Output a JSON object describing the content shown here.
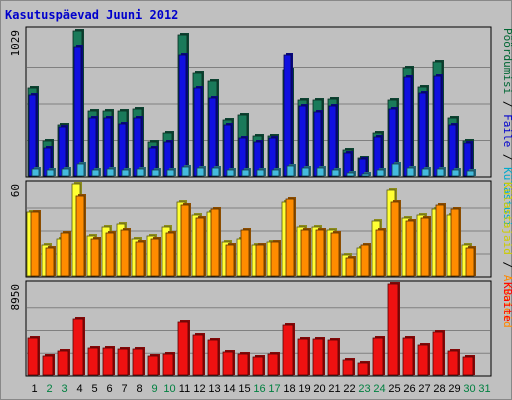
{
  "chart_data": {
    "type": "bar",
    "title": "Kasutuspäevad Juuni 2012",
    "categories": [
      "1",
      "2",
      "3",
      "4",
      "5",
      "6",
      "7",
      "8",
      "9",
      "10",
      "11",
      "12",
      "13",
      "14",
      "15",
      "16",
      "17",
      "18",
      "19",
      "20",
      "21",
      "22",
      "23",
      "24",
      "25",
      "26",
      "27",
      "28",
      "29",
      "30",
      "31"
    ],
    "weekend_days": [
      "2",
      "3",
      "9",
      "10",
      "16",
      "17",
      "23",
      "24",
      "30",
      "31"
    ],
    "panels": [
      {
        "id": "top",
        "ymax_label": "1029",
        "ylim": [
          0,
          1029
        ],
        "legend": [
          {
            "text": "Pöördumisi",
            "color": "#006633"
          },
          {
            "text": " / ",
            "color": "#000000"
          },
          {
            "text": "Faile",
            "color": "#0000cc"
          },
          {
            "text": " / ",
            "color": "#000000"
          },
          {
            "text": "Külastusi",
            "color": "#00aacc"
          }
        ],
        "series": [
          {
            "name": "Pöördumisi",
            "color": "#1a7a5a",
            "values": [
              618,
              247,
              360,
              1022,
              460,
              460,
              460,
              471,
              239,
              306,
              997,
              727,
              669,
              393,
              429,
              282,
              282,
              749,
              536,
              536,
              543,
              181,
              128,
              306,
              534,
              763,
              624,
              800,
              412,
              249,
              0
            ]
          },
          {
            "name": "Faile",
            "color": "#1010e0",
            "values": [
              572,
              199,
              345,
              910,
              412,
              412,
              367,
              412,
              199,
              242,
              855,
              622,
              553,
              358,
              269,
              239,
              269,
              855,
              494,
              451,
              494,
              161,
              120,
              278,
              475,
              701,
              586,
              703,
              362,
              230,
              0
            ]
          },
          {
            "name": "Külastusi",
            "color": "#44bbdd",
            "values": [
              50,
              40,
              50,
              85,
              45,
              50,
              40,
              50,
              40,
              40,
              65,
              55,
              55,
              40,
              40,
              45,
              45,
              70,
              55,
              55,
              45,
              20,
              15,
              45,
              85,
              55,
              50,
              50,
              45,
              35,
              0
            ]
          }
        ]
      },
      {
        "id": "middle",
        "ymax_label": "60",
        "ylim": [
          0,
          60
        ],
        "legend": [
          {
            "text": "Külastajaid",
            "color": "#cccc00"
          },
          {
            "text": " / ",
            "color": "#000000"
          },
          {
            "text": "Arvuteid",
            "color": "#ff8800"
          }
        ],
        "series": [
          {
            "name": "Külastajaid",
            "color": "#ffff33",
            "values": [
              42,
              20,
              24,
              60,
              26,
              32,
              34,
              24,
              26,
              32,
              48,
              40,
              42,
              22,
              24,
              20,
              22,
              48,
              32,
              32,
              30,
              14,
              18,
              36,
              56,
              38,
              40,
              44,
              40,
              20,
              0
            ]
          },
          {
            "name": "Arvuteid",
            "color": "#ff8c00",
            "values": [
              42,
              18,
              28,
              52,
              24,
              28,
              30,
              22,
              24,
              28,
              46,
              38,
              44,
              20,
              30,
              20,
              22,
              50,
              30,
              30,
              28,
              12,
              20,
              30,
              48,
              36,
              38,
              46,
              44,
              18,
              0
            ]
          }
        ]
      },
      {
        "id": "bottom",
        "ymax_label": "8950",
        "ylim": [
          0,
          8950
        ],
        "legend": [
          {
            "text": "KBaite",
            "color": "#ff0000"
          }
        ],
        "series": [
          {
            "name": "KBaite",
            "color": "#ee1111",
            "values": [
              3650,
              1850,
              2350,
              5550,
              2650,
              2650,
              2550,
              2550,
              1850,
              2050,
              5200,
              3900,
              3400,
              2300,
              2050,
              1800,
              2100,
              4900,
              3550,
              3550,
              3400,
              1450,
              1200,
              3650,
              8950,
              3600,
              2950,
              4250,
              2400,
              1800,
              0
            ]
          }
        ]
      }
    ]
  }
}
